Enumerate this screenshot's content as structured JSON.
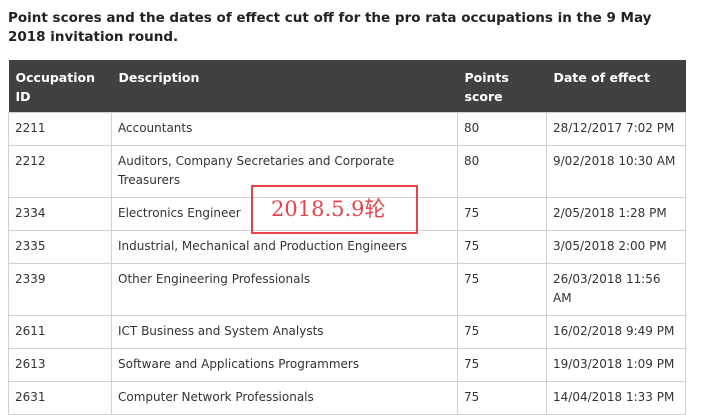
{
  "heading": "Point scores and the dates of effect cut off for the pro rata occupations in the 9 May 2018 invitation round.",
  "table": {
    "headers": {
      "occupation_id": "Occupation ID",
      "description": "Description",
      "points_score": "Points score",
      "date_of_effect": "Date of effect"
    },
    "rows": [
      {
        "id": "2211",
        "description": "Accountants",
        "points": "80",
        "date": "28/12/2017  7:02 PM"
      },
      {
        "id": "2212",
        "description": "Auditors, Company Secretaries and Corporate Treasurers",
        "points": "80",
        "date": "9/02/2018  10:30 AM"
      },
      {
        "id": "2334",
        "description": "Electronics Engineer",
        "points": "75",
        "date": "2/05/2018  1:28 PM"
      },
      {
        "id": "2335",
        "description": "Industrial, Mechanical and Production Engineers",
        "points": "75",
        "date": "3/05/2018  2:00 PM"
      },
      {
        "id": "2339",
        "description": "Other Engineering Professionals",
        "points": "75",
        "date": "26/03/2018  11:56 AM"
      },
      {
        "id": "2611",
        "description": "ICT Business and System Analysts",
        "points": "75",
        "date": "16/02/2018  9:49 PM"
      },
      {
        "id": "2613",
        "description": "Software and Applications Programmers",
        "points": "75",
        "date": "19/03/2018  1:09 PM"
      },
      {
        "id": "2631",
        "description": "Computer Network Professionals",
        "points": "75",
        "date": "14/04/2018  1:33 PM"
      }
    ]
  },
  "annotation": {
    "text": "2018.5.9轮",
    "color": "#e8434a"
  },
  "colors": {
    "header_background": "#414141",
    "header_text": "#ffffff",
    "border": "#d0d0d0"
  }
}
